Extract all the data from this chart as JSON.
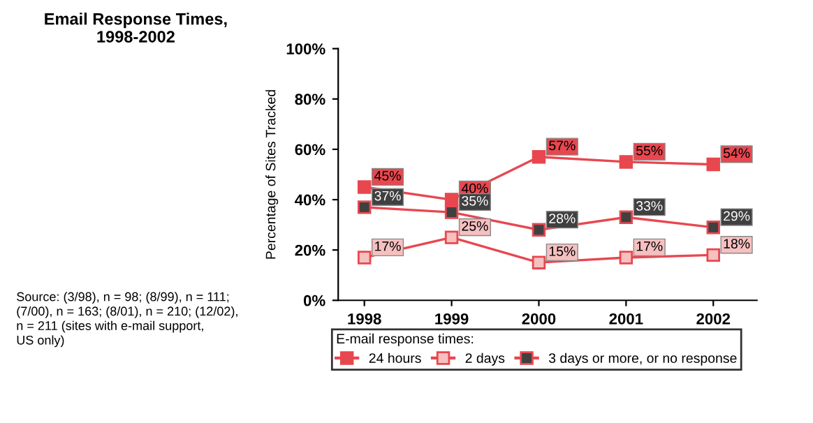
{
  "chart_data": {
    "type": "line",
    "title": "Email Response Times,\n1998-2002",
    "ylabel": "Percentage of Sites Tracked",
    "legend_title": "E-mail response times:",
    "categories": [
      "1998",
      "1999",
      "2000",
      "2001",
      "2002"
    ],
    "series": [
      {
        "name": "24 hours",
        "color": "#e8474f",
        "values": [
          45,
          40,
          57,
          55,
          54
        ],
        "value_labels": [
          "45%",
          "40%",
          "57%",
          "55%",
          "54%"
        ]
      },
      {
        "name": "2 days",
        "color": "#f6c0c0",
        "values": [
          17,
          25,
          15,
          17,
          18
        ],
        "value_labels": [
          "17%",
          "25%",
          "15%",
          "17%",
          "18%"
        ]
      },
      {
        "name": "3 days or more, or no response",
        "color": "#404040",
        "values": [
          37,
          35,
          28,
          33,
          29
        ],
        "value_labels": [
          "37%",
          "35%",
          "28%",
          "33%",
          "29%"
        ]
      }
    ],
    "ylim": [
      0,
      100
    ],
    "yticks": [
      {
        "value": 0,
        "label": "0%"
      },
      {
        "value": 20,
        "label": "20%"
      },
      {
        "value": 40,
        "label": "40%"
      },
      {
        "value": 60,
        "label": "60%"
      },
      {
        "value": 80,
        "label": "80%"
      },
      {
        "value": 100,
        "label": "100%"
      }
    ],
    "grid": false,
    "legend": "bottom",
    "marker": "square",
    "line_style": "solid",
    "annotations": [
      "Source: (3/98), n = 98; (8/99), n = 111;\n(7/00), n = 163; (8/01), n = 210; (12/02),\nn = 211 (sites with e-mail support,\nUS only)"
    ]
  }
}
